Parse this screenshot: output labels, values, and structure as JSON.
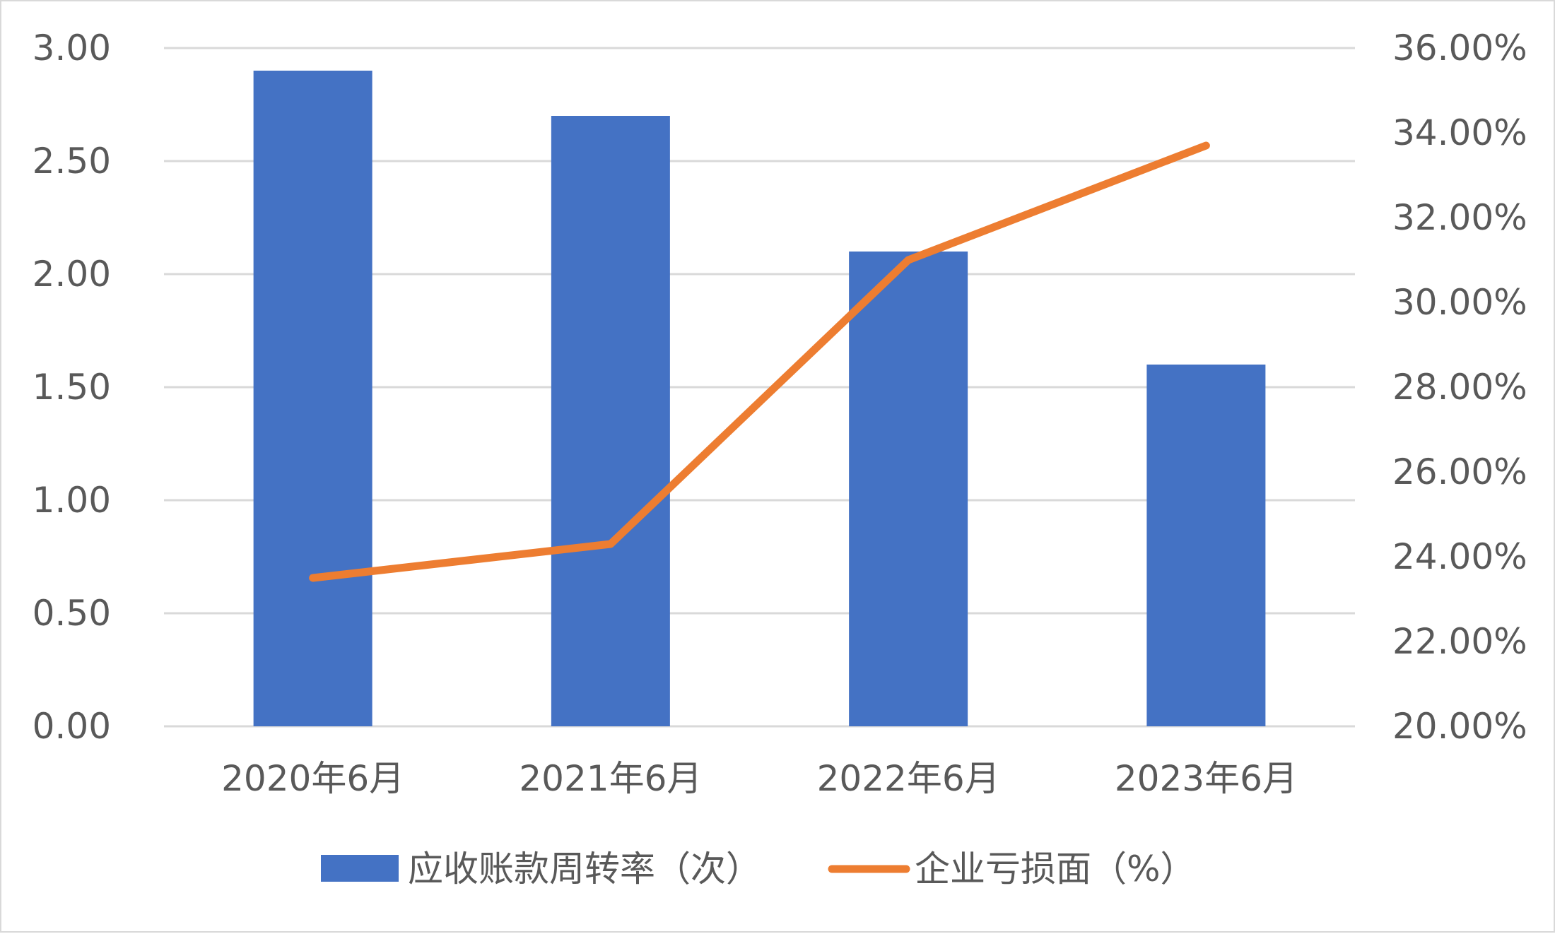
{
  "chart_data": {
    "type": "bar",
    "categories": [
      "2020年6月",
      "2021年6月",
      "2022年6月",
      "2023年6月"
    ],
    "series": [
      {
        "name": "应收账款周转率（次）",
        "type": "bar",
        "axis": "left",
        "color": "#4472C4",
        "values": [
          2.9,
          2.7,
          2.1,
          1.6
        ]
      },
      {
        "name": "企业亏损面（%）",
        "type": "line",
        "axis": "right",
        "color": "#ED7D31",
        "values": [
          0.235,
          0.243,
          0.31,
          0.337
        ]
      }
    ],
    "y_left": {
      "min": 0,
      "max": 3,
      "ticks": [
        "0.00",
        "0.50",
        "1.00",
        "1.50",
        "2.00",
        "2.50",
        "3.00"
      ]
    },
    "y_right": {
      "min": 0.2,
      "max": 0.36,
      "ticks": [
        "20.00%",
        "22.00%",
        "24.00%",
        "26.00%",
        "28.00%",
        "30.00%",
        "32.00%",
        "34.00%",
        "36.00%"
      ]
    },
    "grid": true,
    "legend_position": "bottom",
    "colors": {
      "bar": "#4472C4",
      "line": "#ED7D31",
      "grid": "#D9D9D9",
      "text": "#595959"
    }
  }
}
